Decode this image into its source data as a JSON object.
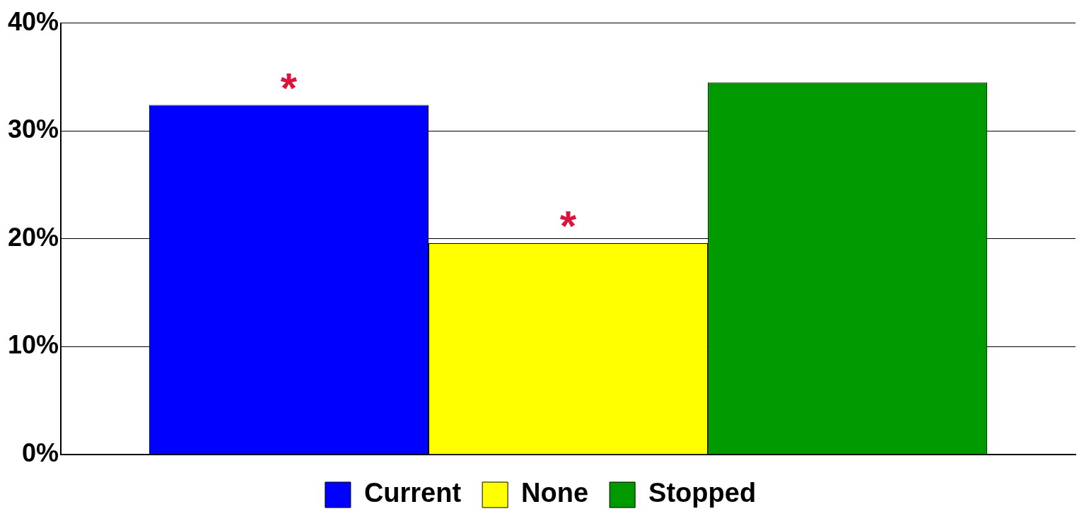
{
  "chart_data": {
    "type": "bar",
    "categories": [
      null
    ],
    "series": [
      {
        "name": "Current",
        "color": "#0000ff",
        "values": [
          32.4
        ],
        "value_labels": [
          "*"
        ]
      },
      {
        "name": "None",
        "color": "#ffff00",
        "values": [
          19.6
        ],
        "value_labels": [
          "*"
        ]
      },
      {
        "name": "Stopped",
        "color": "#009900",
        "values": [
          34.5
        ],
        "value_labels": [
          null
        ]
      }
    ],
    "ylim": [
      0,
      40
    ],
    "yticks": [
      {
        "value": 0,
        "label": "0%"
      },
      {
        "value": 10,
        "label": "10%"
      },
      {
        "value": 20,
        "label": "20%"
      },
      {
        "value": 30,
        "label": "30%"
      },
      {
        "value": 40,
        "label": "40%"
      }
    ],
    "grid": "y",
    "legend": "bottom"
  }
}
